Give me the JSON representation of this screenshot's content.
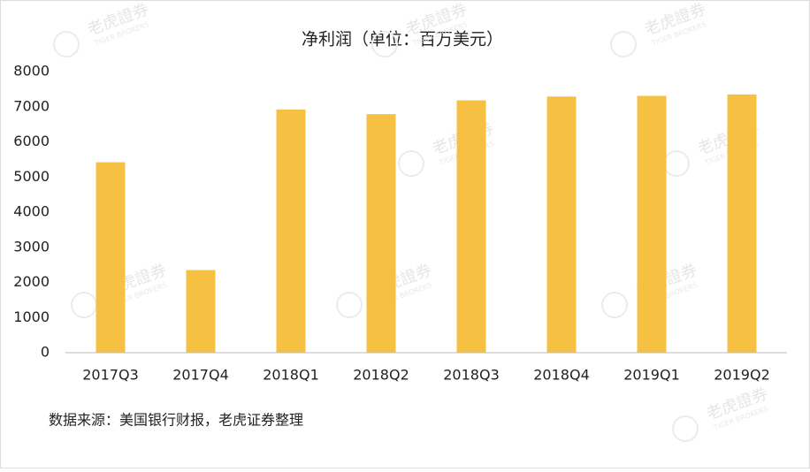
{
  "chart_data": {
    "type": "bar",
    "title": "净利润（单位：百万美元）",
    "categories": [
      "2017Q3",
      "2017Q4",
      "2018Q1",
      "2018Q2",
      "2018Q3",
      "2018Q4",
      "2019Q1",
      "2019Q2"
    ],
    "values": [
      5420,
      2350,
      6920,
      6790,
      7180,
      7290,
      7310,
      7350
    ],
    "color": "#f6c143",
    "ylim": [
      0,
      8000
    ],
    "yticks": [
      0,
      1000,
      2000,
      3000,
      4000,
      5000,
      6000,
      7000,
      8000
    ],
    "grid": false,
    "source": "数据来源：美国银行财报，老虎证券整理",
    "watermark": {
      "name": "老虎證券",
      "sub": "TIGER BROKERS"
    }
  }
}
